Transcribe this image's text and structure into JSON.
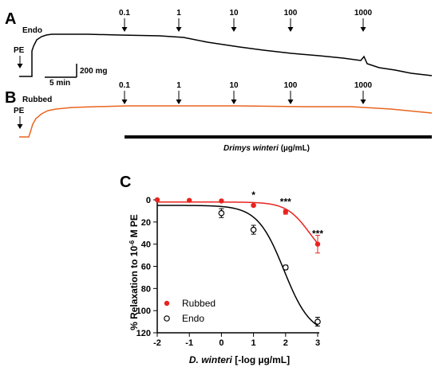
{
  "panel_a": {
    "letter": "A",
    "tissue_label": "Endo",
    "pe_label": "PE",
    "scale_weight": "200 mg",
    "scale_time": "5 min",
    "trace_color": "#000000",
    "concentrations": [
      "0.1",
      "1",
      "10",
      "100",
      "1000"
    ]
  },
  "panel_b": {
    "letter": "B",
    "tissue_label": "Rubbed",
    "pe_label": "PE",
    "trace_color": "#e8651e",
    "concentrations": [
      "0.1",
      "1",
      "10",
      "100",
      "1000"
    ]
  },
  "treatment_bar": {
    "label_italic": "Drimys winteri",
    "label_rest": " (µg/mL)"
  },
  "panel_c": {
    "letter": "C"
  },
  "chart_data": {
    "type": "scatter",
    "xlabel_italic": "D. winteri",
    "xlabel_rest": " [-log µg/mL]",
    "ylabel_main": "% Relaxation to 10",
    "ylabel_sup": "-6",
    "ylabel_tail": " M PE",
    "xlim": [
      -2,
      3
    ],
    "ylim": [
      0,
      120
    ],
    "y_inverted": true,
    "x_ticks": [
      "-2",
      "-1",
      "0",
      "1",
      "2",
      "3"
    ],
    "y_ticks": [
      "0",
      "20",
      "40",
      "60",
      "80",
      "100",
      "120"
    ],
    "legend_position": "bottom-left",
    "series": [
      {
        "name": "Rubbed",
        "marker": "filled-circle",
        "color": "#e8231e",
        "x": [
          -2,
          -1,
          0,
          1,
          2,
          3
        ],
        "y": [
          0,
          0.5,
          1,
          5,
          11,
          40
        ],
        "err": [
          0,
          0,
          0,
          1,
          2,
          8
        ],
        "fit": {
          "bottom": 2,
          "top": 58,
          "logEC50": 2.75,
          "hill": 1.2
        }
      },
      {
        "name": "Endo",
        "marker": "open-circle",
        "color": "#000000",
        "x": [
          0,
          1,
          2,
          3
        ],
        "y": [
          12,
          27,
          61,
          110
        ],
        "err": [
          4,
          4,
          2,
          4
        ],
        "fit": {
          "bottom": 5,
          "top": 122,
          "logEC50": 1.95,
          "hill": 1.05
        }
      }
    ],
    "significance": [
      {
        "x": 1,
        "y": 5,
        "label": "*"
      },
      {
        "x": 2,
        "y": 11,
        "label": "***"
      },
      {
        "x": 3,
        "y": 40,
        "label": "***"
      }
    ]
  }
}
